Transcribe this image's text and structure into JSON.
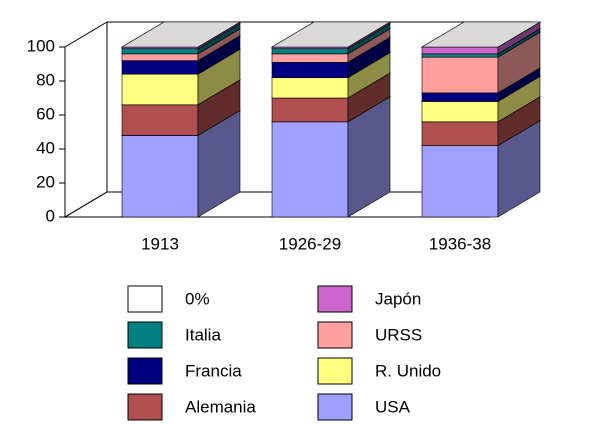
{
  "chart_data": {
    "type": "bar3d_stacked",
    "categories": [
      "1913",
      "1926-29",
      "1936-38"
    ],
    "series": [
      {
        "name": "USA",
        "color": "#a0a0ff",
        "values": [
          48,
          56,
          42
        ]
      },
      {
        "name": "Alemania",
        "color": "#b05050",
        "values": [
          18,
          14,
          14
        ]
      },
      {
        "name": "R. Unido",
        "color": "#ffff80",
        "values": [
          18,
          12,
          12
        ]
      },
      {
        "name": "Francia",
        "color": "#000080",
        "values": [
          8,
          9,
          5
        ]
      },
      {
        "name": "URSS",
        "color": "#ffa0a0",
        "values": [
          4,
          5,
          21
        ]
      },
      {
        "name": "Italia",
        "color": "#008080",
        "values": [
          3,
          3,
          2
        ]
      },
      {
        "name": "Japón",
        "color": "#cc66cc",
        "values": [
          1,
          1,
          4
        ]
      },
      {
        "name": "0%",
        "color": "#ffffff",
        "values": [
          0,
          0,
          0
        ]
      }
    ],
    "ylim": [
      0,
      100
    ],
    "yticks": [
      0,
      20,
      40,
      60,
      80,
      100
    ]
  }
}
